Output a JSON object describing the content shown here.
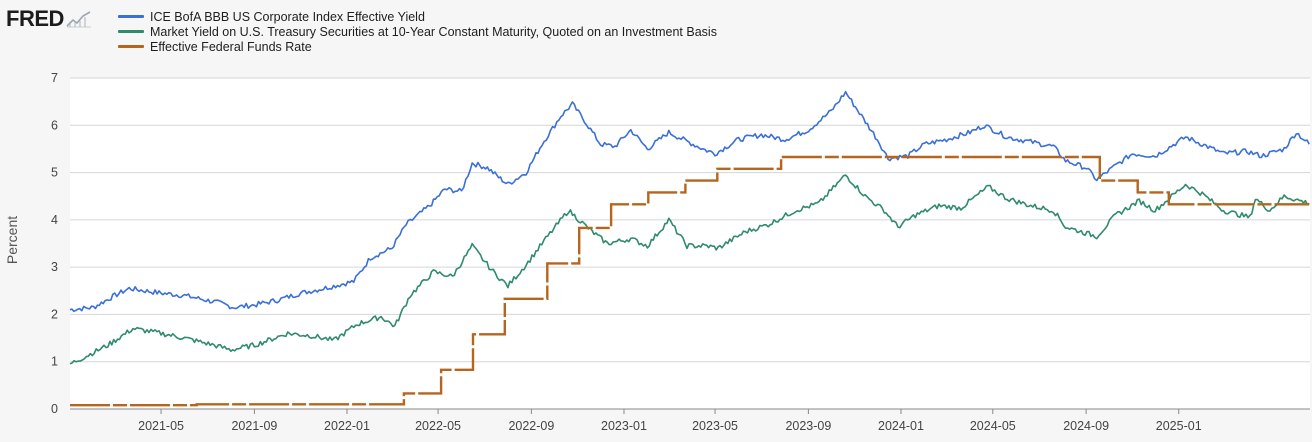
{
  "brand": {
    "name": "FRED",
    "icon": "chart-trend-icon"
  },
  "chart_data": {
    "type": "line",
    "ylabel": "Percent",
    "ylim": [
      0,
      7
    ],
    "yticks": [
      0,
      1,
      2,
      3,
      4,
      5,
      6,
      7
    ],
    "xlim": [
      "2021-01-01",
      "2025-06-23"
    ],
    "xticks": [
      "2021-05",
      "2021-09",
      "2022-01",
      "2022-05",
      "2022-09",
      "2023-01",
      "2023-05",
      "2023-09",
      "2024-01",
      "2024-05",
      "2024-09",
      "2025-01"
    ],
    "grid": "horizontal",
    "legend_placement": "top-left",
    "series": [
      {
        "name": "ICE BofA BBB US Corporate Index Effective Yield",
        "color": "#3a6fd8",
        "points": [
          [
            "2021-01-01",
            2.1
          ],
          [
            "2021-02-01",
            2.15
          ],
          [
            "2021-03-01",
            2.4
          ],
          [
            "2021-03-20",
            2.55
          ],
          [
            "2021-05-01",
            2.45
          ],
          [
            "2021-06-01",
            2.4
          ],
          [
            "2021-07-15",
            2.25
          ],
          [
            "2021-08-05",
            2.15
          ],
          [
            "2021-09-01",
            2.2
          ],
          [
            "2021-10-01",
            2.3
          ],
          [
            "2021-11-01",
            2.45
          ],
          [
            "2021-12-01",
            2.55
          ],
          [
            "2022-01-10",
            2.7
          ],
          [
            "2022-02-01",
            3.2
          ],
          [
            "2022-03-01",
            3.4
          ],
          [
            "2022-03-20",
            3.9
          ],
          [
            "2022-04-20",
            4.3
          ],
          [
            "2022-05-10",
            4.65
          ],
          [
            "2022-06-01",
            4.6
          ],
          [
            "2022-06-15",
            5.2
          ],
          [
            "2022-07-05",
            5.1
          ],
          [
            "2022-07-20",
            4.9
          ],
          [
            "2022-08-01",
            4.75
          ],
          [
            "2022-08-25",
            5.0
          ],
          [
            "2022-09-15",
            5.6
          ],
          [
            "2022-10-10",
            6.2
          ],
          [
            "2022-10-25",
            6.45
          ],
          [
            "2022-11-10",
            6.1
          ],
          [
            "2022-12-01",
            5.6
          ],
          [
            "2022-12-20",
            5.55
          ],
          [
            "2023-01-10",
            5.9
          ],
          [
            "2023-02-01",
            5.5
          ],
          [
            "2023-03-01",
            5.85
          ],
          [
            "2023-03-20",
            5.7
          ],
          [
            "2023-04-15",
            5.5
          ],
          [
            "2023-05-01",
            5.4
          ],
          [
            "2023-06-01",
            5.7
          ],
          [
            "2023-07-01",
            5.8
          ],
          [
            "2023-08-01",
            5.7
          ],
          [
            "2023-09-01",
            5.9
          ],
          [
            "2023-10-01",
            6.3
          ],
          [
            "2023-10-20",
            6.7
          ],
          [
            "2023-11-10",
            6.2
          ],
          [
            "2023-12-01",
            5.7
          ],
          [
            "2023-12-15",
            5.3
          ],
          [
            "2024-01-10",
            5.35
          ],
          [
            "2024-02-01",
            5.6
          ],
          [
            "2024-03-01",
            5.7
          ],
          [
            "2024-04-01",
            5.85
          ],
          [
            "2024-04-20",
            6.0
          ],
          [
            "2024-05-20",
            5.75
          ],
          [
            "2024-06-20",
            5.65
          ],
          [
            "2024-07-20",
            5.55
          ],
          [
            "2024-08-05",
            5.25
          ],
          [
            "2024-09-01",
            5.1
          ],
          [
            "2024-09-15",
            4.85
          ],
          [
            "2024-10-10",
            5.15
          ],
          [
            "2024-11-01",
            5.4
          ],
          [
            "2024-12-01",
            5.35
          ],
          [
            "2025-01-10",
            5.75
          ],
          [
            "2025-02-01",
            5.6
          ],
          [
            "2025-03-01",
            5.4
          ],
          [
            "2025-04-01",
            5.45
          ],
          [
            "2025-04-20",
            5.35
          ],
          [
            "2025-05-20",
            5.5
          ],
          [
            "2025-06-05",
            5.85
          ],
          [
            "2025-06-22",
            5.6
          ]
        ]
      },
      {
        "name": "Market Yield on U.S. Treasury Securities at 10-Year Constant Maturity, Quoted on an Investment Basis",
        "color": "#2e8b6b",
        "points": [
          [
            "2021-01-01",
            0.95
          ],
          [
            "2021-01-20",
            1.1
          ],
          [
            "2021-02-20",
            1.35
          ],
          [
            "2021-03-25",
            1.7
          ],
          [
            "2021-05-01",
            1.6
          ],
          [
            "2021-06-01",
            1.5
          ],
          [
            "2021-07-10",
            1.35
          ],
          [
            "2021-08-01",
            1.25
          ],
          [
            "2021-09-01",
            1.35
          ],
          [
            "2021-10-15",
            1.6
          ],
          [
            "2021-11-15",
            1.55
          ],
          [
            "2021-12-15",
            1.45
          ],
          [
            "2022-01-15",
            1.8
          ],
          [
            "2022-02-15",
            1.95
          ],
          [
            "2022-03-05",
            1.75
          ],
          [
            "2022-03-25",
            2.4
          ],
          [
            "2022-04-25",
            2.9
          ],
          [
            "2022-05-20",
            2.8
          ],
          [
            "2022-06-15",
            3.45
          ],
          [
            "2022-07-10",
            2.95
          ],
          [
            "2022-08-01",
            2.6
          ],
          [
            "2022-08-25",
            3.05
          ],
          [
            "2022-09-20",
            3.6
          ],
          [
            "2022-10-20",
            4.2
          ],
          [
            "2022-11-20",
            3.75
          ],
          [
            "2022-12-10",
            3.5
          ],
          [
            "2023-01-10",
            3.6
          ],
          [
            "2023-02-01",
            3.45
          ],
          [
            "2023-03-01",
            4.0
          ],
          [
            "2023-03-25",
            3.45
          ],
          [
            "2023-04-20",
            3.45
          ],
          [
            "2023-05-05",
            3.4
          ],
          [
            "2023-06-10",
            3.75
          ],
          [
            "2023-07-10",
            3.9
          ],
          [
            "2023-08-15",
            4.2
          ],
          [
            "2023-09-15",
            4.35
          ],
          [
            "2023-10-20",
            4.95
          ],
          [
            "2023-11-15",
            4.5
          ],
          [
            "2023-12-10",
            4.2
          ],
          [
            "2023-12-28",
            3.85
          ],
          [
            "2024-01-20",
            4.1
          ],
          [
            "2024-02-20",
            4.3
          ],
          [
            "2024-03-20",
            4.25
          ],
          [
            "2024-04-25",
            4.7
          ],
          [
            "2024-05-20",
            4.45
          ],
          [
            "2024-06-20",
            4.3
          ],
          [
            "2024-07-20",
            4.2
          ],
          [
            "2024-08-05",
            3.85
          ],
          [
            "2024-09-15",
            3.65
          ],
          [
            "2024-10-10",
            4.1
          ],
          [
            "2024-11-10",
            4.4
          ],
          [
            "2024-12-01",
            4.2
          ],
          [
            "2025-01-10",
            4.75
          ],
          [
            "2025-02-01",
            4.55
          ],
          [
            "2025-03-01",
            4.2
          ],
          [
            "2025-04-05",
            4.05
          ],
          [
            "2025-04-12",
            4.45
          ],
          [
            "2025-05-01",
            4.2
          ],
          [
            "2025-05-20",
            4.5
          ],
          [
            "2025-06-22",
            4.35
          ]
        ]
      },
      {
        "name": "Effective Federal Funds Rate",
        "color": "#b5651d",
        "step": true,
        "points": [
          [
            "2021-01-01",
            0.08
          ],
          [
            "2021-06-17",
            0.1
          ],
          [
            "2022-03-17",
            0.33
          ],
          [
            "2022-05-05",
            0.83
          ],
          [
            "2022-06-16",
            1.58
          ],
          [
            "2022-07-28",
            2.33
          ],
          [
            "2022-09-22",
            3.08
          ],
          [
            "2022-11-03",
            3.83
          ],
          [
            "2022-12-15",
            4.33
          ],
          [
            "2023-02-02",
            4.58
          ],
          [
            "2023-03-23",
            4.83
          ],
          [
            "2023-05-04",
            5.08
          ],
          [
            "2023-07-27",
            5.33
          ],
          [
            "2024-09-19",
            4.83
          ],
          [
            "2024-11-08",
            4.58
          ],
          [
            "2024-12-19",
            4.33
          ],
          [
            "2025-06-22",
            4.33
          ]
        ]
      }
    ]
  }
}
